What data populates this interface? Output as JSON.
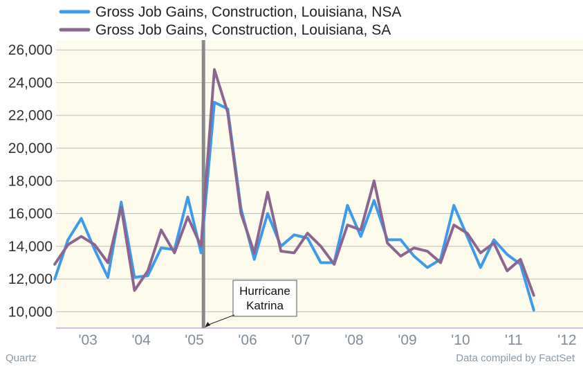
{
  "footer": {
    "left": "Quartz",
    "right": "Data compiled by FactSet"
  },
  "chart_data": {
    "type": "line",
    "xlabel": "",
    "ylabel": "",
    "ylim": [
      9000,
      26600
    ],
    "xlim": [
      2002.4,
      2012.3
    ],
    "y_ticks": [
      10000,
      12000,
      14000,
      16000,
      18000,
      20000,
      22000,
      24000,
      26000
    ],
    "y_tick_labels": [
      "10,000",
      "12,000",
      "14,000",
      "16,000",
      "18,000",
      "20,000",
      "22,000",
      "24,000",
      "26,000"
    ],
    "x_ticks": [
      2003,
      2004,
      2005,
      2006,
      2007,
      2008,
      2009,
      2010,
      2011,
      2012
    ],
    "x_tick_labels": [
      "'03",
      "'04",
      "'05",
      "'06",
      "'07",
      "'08",
      "'09",
      "'10",
      "'11",
      "'12"
    ],
    "grid": "horizontal",
    "legend_position": "top-left",
    "x": [
      2002.375,
      2002.625,
      2002.875,
      2003.125,
      2003.375,
      2003.625,
      2003.875,
      2004.125,
      2004.375,
      2004.625,
      2004.875,
      2005.125,
      2005.375,
      2005.625,
      2005.875,
      2006.125,
      2006.375,
      2006.625,
      2006.875,
      2007.125,
      2007.375,
      2007.625,
      2007.875,
      2008.125,
      2008.375,
      2008.625,
      2008.875,
      2009.125,
      2009.375,
      2009.625,
      2009.875,
      2010.125,
      2010.375,
      2010.625,
      2010.875,
      2011.125,
      2011.375
    ],
    "series": [
      {
        "name": "Gross Job Gains, Construction, Louisiana, NSA",
        "color": "#3d9be9",
        "values": [
          12000,
          14400,
          15700,
          13800,
          12100,
          16700,
          12100,
          12200,
          13900,
          13800,
          17000,
          13600,
          22800,
          22400,
          16300,
          13200,
          16000,
          14000,
          14700,
          14500,
          13000,
          13000,
          16500,
          14600,
          16800,
          14400,
          14400,
          13400,
          12700,
          13200,
          16500,
          14600,
          12700,
          14400,
          13500,
          12900,
          10100
        ]
      },
      {
        "name": "Gross Job Gains, Construction, Louisiana, SA",
        "color": "#8b6691",
        "values": [
          12900,
          14100,
          14600,
          14100,
          13000,
          16400,
          11300,
          12500,
          15000,
          13600,
          15800,
          14000,
          24800,
          22200,
          16000,
          13600,
          17300,
          13700,
          13600,
          14800,
          14000,
          12900,
          15300,
          15000,
          18000,
          14200,
          13400,
          13900,
          13700,
          13000,
          15300,
          14800,
          13600,
          14200,
          12500,
          13200,
          11000
        ]
      }
    ],
    "annotations": [
      {
        "text_lines": [
          "Hurricane",
          "Katrina"
        ],
        "x": 2005.17
      }
    ]
  }
}
